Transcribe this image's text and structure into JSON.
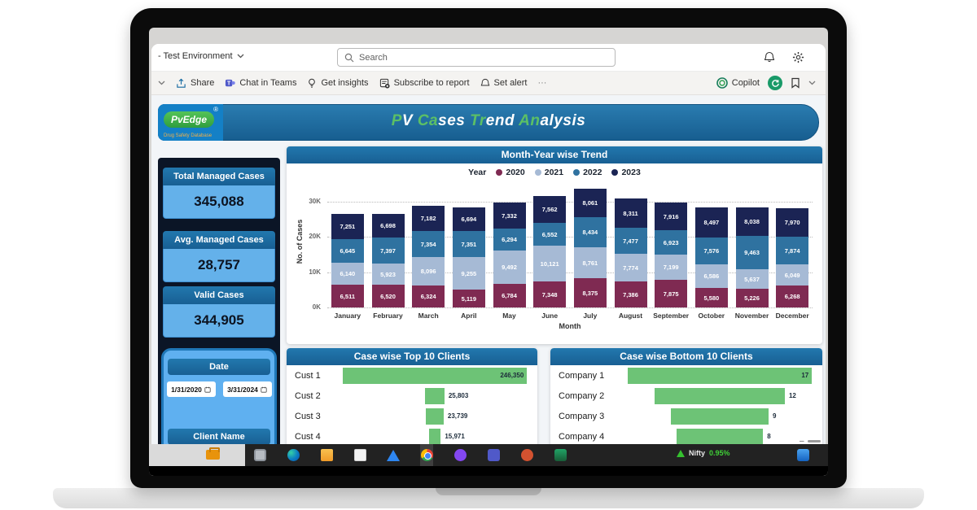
{
  "browser": {
    "env_label": "- Test Environment",
    "search_placeholder": "Search",
    "toolbar": {
      "share": "Share",
      "chat_in_teams": "Chat in Teams",
      "get_insights": "Get insights",
      "subscribe": "Subscribe to report",
      "set_alert": "Set alert",
      "more": "···",
      "copilot": "Copilot"
    }
  },
  "report": {
    "logo": {
      "brand": "PvEdge",
      "registered": "®",
      "tagline": "Drug Safety Database"
    },
    "title_segments": [
      {
        "text": "P",
        "green": true
      },
      {
        "text": "V ",
        "green": false
      },
      {
        "text": "Ca",
        "green": true
      },
      {
        "text": "ses ",
        "green": false
      },
      {
        "text": "Tr",
        "green": true
      },
      {
        "text": "end ",
        "green": false
      },
      {
        "text": "An",
        "green": true
      },
      {
        "text": "alysis",
        "green": false
      }
    ],
    "kpis": [
      {
        "label": "Total Managed Cases",
        "value": "345,088"
      },
      {
        "label": "Avg. Managed Cases",
        "value": "28,757"
      },
      {
        "label": "Valid Cases",
        "value": "344,905"
      }
    ],
    "filters": {
      "date_label": "Date",
      "date_from": "1/31/2020",
      "date_to": "3/31/2024",
      "client_label": "Client Name"
    }
  },
  "chart_data": [
    {
      "type": "bar",
      "stacked": true,
      "title": "Month-Year wise Trend",
      "legend_title": "Year",
      "legend_position": "top",
      "xlabel": "Month",
      "ylabel": "No. of Cases",
      "ylim": [
        0,
        30000
      ],
      "yticks": [
        "0K",
        "10K",
        "20K",
        "30K"
      ],
      "grid": "dotted-horizontal",
      "categories": [
        "January",
        "February",
        "March",
        "April",
        "May",
        "June",
        "July",
        "August",
        "September",
        "October",
        "November",
        "December"
      ],
      "series": [
        {
          "name": "2020",
          "color": "#7f2a52",
          "values": [
            6511,
            6520,
            6324,
            5119,
            6784,
            7348,
            8375,
            7386,
            7875,
            5580,
            5226,
            6268
          ]
        },
        {
          "name": "2021",
          "color": "#a6bad5",
          "values": [
            6140,
            5923,
            8096,
            9255,
            9492,
            10121,
            8761,
            7774,
            7199,
            6586,
            5637,
            6049
          ]
        },
        {
          "name": "2022",
          "color": "#2f72a0",
          "values": [
            6645,
            7397,
            7354,
            7351,
            6294,
            6552,
            8434,
            7477,
            6923,
            7576,
            9463,
            7874
          ]
        },
        {
          "name": "2023",
          "color": "#1b2454",
          "values": [
            7251,
            6698,
            7182,
            6694,
            7332,
            7562,
            8061,
            8311,
            7916,
            8497,
            8038,
            7970
          ]
        }
      ]
    },
    {
      "type": "funnel",
      "title": "Case wise Top 10 Clients",
      "bar_color": "#6dc376",
      "categories": [
        "Cust 1",
        "Cust 2",
        "Cust 3",
        "Cust 4"
      ],
      "values": [
        246350,
        25803,
        23739,
        15971
      ],
      "labels": [
        "246,350",
        "25,803",
        "23,739",
        "15,971"
      ]
    },
    {
      "type": "funnel",
      "title": "Case wise Bottom 10 Clients",
      "bar_color": "#6dc376",
      "categories": [
        "Company 1",
        "Company 2",
        "Company 3",
        "Company 4"
      ],
      "values": [
        17,
        12,
        9,
        8
      ],
      "labels": [
        "17",
        "12",
        "9",
        "8"
      ]
    }
  ],
  "taskbar": {
    "pinned_icon": "briefcase",
    "icons": [
      {
        "name": "desktop"
      },
      {
        "name": "edge"
      },
      {
        "name": "folder"
      },
      {
        "name": "store"
      },
      {
        "name": "drive"
      },
      {
        "name": "chrome",
        "active": true
      },
      {
        "name": "clipchamp"
      },
      {
        "name": "teams"
      },
      {
        "name": "powerpoint"
      },
      {
        "name": "excel"
      }
    ],
    "ticker": {
      "label": "Nifty",
      "change": "0.95%"
    }
  }
}
